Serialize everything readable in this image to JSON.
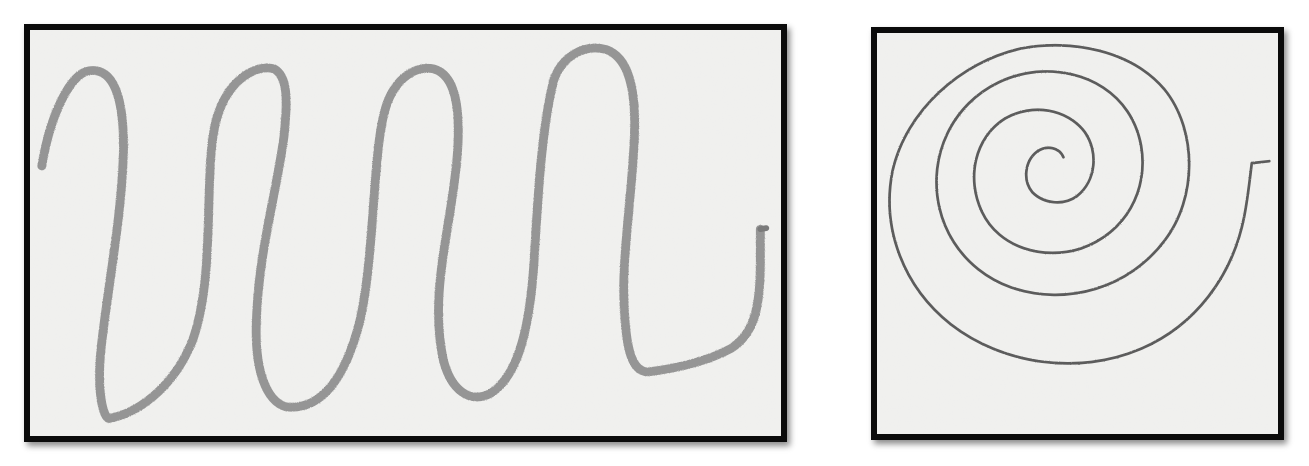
{
  "images": [
    {
      "id": "wave",
      "kind": "pencil-wave-drawing",
      "paper_color": "#ececea",
      "stroke_color": "#8e8e8e",
      "border_color": "#0b0b0b"
    },
    {
      "id": "spiral",
      "kind": "pencil-spiral-drawing",
      "paper_color": "#ececea",
      "stroke_color": "#5c5c5c",
      "border_color": "#0b0b0b"
    }
  ]
}
